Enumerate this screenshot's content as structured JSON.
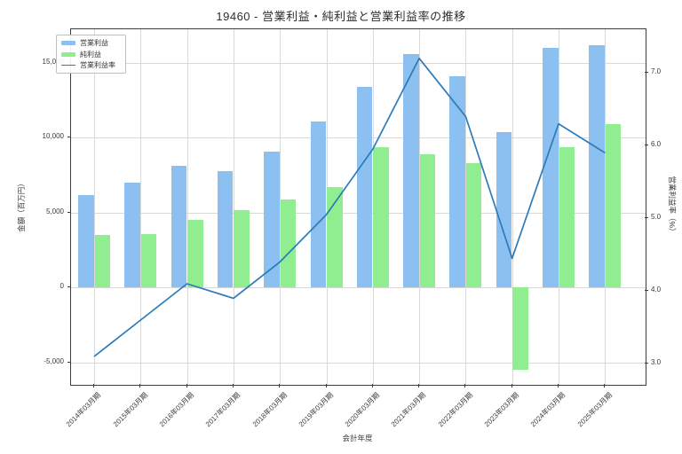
{
  "figure": {
    "title": "19460 - 営業利益・純利益と営業利益率の推移",
    "xlabel": "会計年度",
    "ylabel_left": "金額（百万円）",
    "ylabel_right": "営業利益率（%）"
  },
  "chart_data": {
    "type": "bar",
    "subtype": "grouped-bar-with-line",
    "title": "19460 - 営業利益・純利益と営業利益率の推移",
    "xlabel": "会計年度",
    "ylabel_left": "金額（百万円）",
    "ylabel_right": "営業利益率（%）",
    "categories": [
      "2014年03月期",
      "2015年03月期",
      "2016年03月期",
      "2017年03月期",
      "2018年03月期",
      "2019年03月期",
      "2020年03月期",
      "2021年03月期",
      "2022年03月期",
      "2023年03月期",
      "2024年03月期",
      "2025年03月期"
    ],
    "series": [
      {
        "name": "営業利益",
        "key": "operating-profit",
        "type": "bar",
        "axis": "left",
        "color": "#8cc0f0",
        "values": [
          6150,
          7000,
          8150,
          7800,
          9050,
          11100,
          13400,
          15600,
          14100,
          10350,
          16000,
          16150
        ]
      },
      {
        "name": "純利益",
        "key": "net-profit",
        "type": "bar",
        "axis": "left",
        "color": "#90ee90",
        "values": [
          3500,
          3550,
          4500,
          5200,
          5900,
          6700,
          9350,
          8900,
          8300,
          -5500,
          9400,
          10900
        ]
      },
      {
        "name": "営業利益率",
        "key": "operating-margin",
        "type": "line",
        "axis": "right",
        "color": "#2b7bba",
        "values": [
          3.1,
          3.6,
          4.1,
          3.9,
          4.4,
          5.05,
          5.95,
          7.2,
          6.4,
          4.45,
          6.3,
          5.9
        ]
      }
    ],
    "left_axis": {
      "ticks": [
        "-5,000",
        "0",
        "5,000",
        "10,000",
        "15,000"
      ],
      "tick_values": [
        -5000,
        0,
        5000,
        10000,
        15000
      ],
      "ylim": [
        -6490,
        17240
      ]
    },
    "right_axis": {
      "ticks": [
        "3.0",
        "4.0",
        "5.0",
        "6.0",
        "7.0"
      ],
      "tick_values": [
        3,
        4,
        5,
        6,
        7
      ],
      "ylim": [
        2.71,
        7.6
      ]
    },
    "grid": true,
    "legend_position": "upper left",
    "gridline_color": "#d9d9d9",
    "frame_color": "#3c3c3c"
  }
}
